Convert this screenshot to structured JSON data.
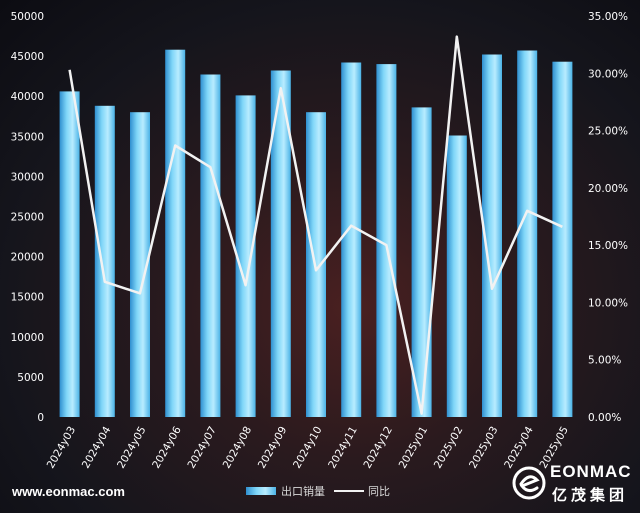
{
  "chart_data": {
    "type": "bar",
    "categories": [
      "2024y03",
      "2024y04",
      "2024y05",
      "2024y06",
      "2024y07",
      "2024y08",
      "2024y09",
      "2024y10",
      "2024y11",
      "2024y12",
      "2025y01",
      "2025y02",
      "2025y03",
      "2025y04",
      "2025y05"
    ],
    "series": [
      {
        "name": "出口销量",
        "type": "bar",
        "axis": "left",
        "values": [
          40600,
          38800,
          38000,
          45800,
          42700,
          40100,
          43200,
          38000,
          44200,
          44000,
          38600,
          35100,
          45200,
          45700,
          44300
        ]
      },
      {
        "name": "同比",
        "type": "line",
        "axis": "right",
        "values": [
          0.303,
          0.118,
          0.108,
          0.237,
          0.218,
          0.115,
          0.287,
          0.128,
          0.167,
          0.15,
          0.003,
          0.332,
          0.112,
          0.18,
          0.166
        ]
      }
    ],
    "y_left": {
      "min": 0,
      "max": 50000,
      "step": 5000,
      "ticks": [
        "0",
        "5000",
        "10000",
        "15000",
        "20000",
        "25000",
        "30000",
        "35000",
        "40000",
        "45000",
        "50000"
      ]
    },
    "y_right": {
      "min": 0,
      "max": 0.35,
      "step": 0.05,
      "ticks": [
        "0.00%",
        "5.00%",
        "10.00%",
        "15.00%",
        "20.00%",
        "25.00%",
        "30.00%",
        "35.00%"
      ]
    },
    "legend_position": "bottom-center",
    "grid": false,
    "colors": {
      "bar": "#5ec4f0",
      "line": "#f2f2f2",
      "axis_text": "#ffffff"
    }
  },
  "footer": {
    "website": "www.eonmac.com",
    "brand_latin": "EONMAC",
    "brand_cn": "亿茂集团"
  }
}
